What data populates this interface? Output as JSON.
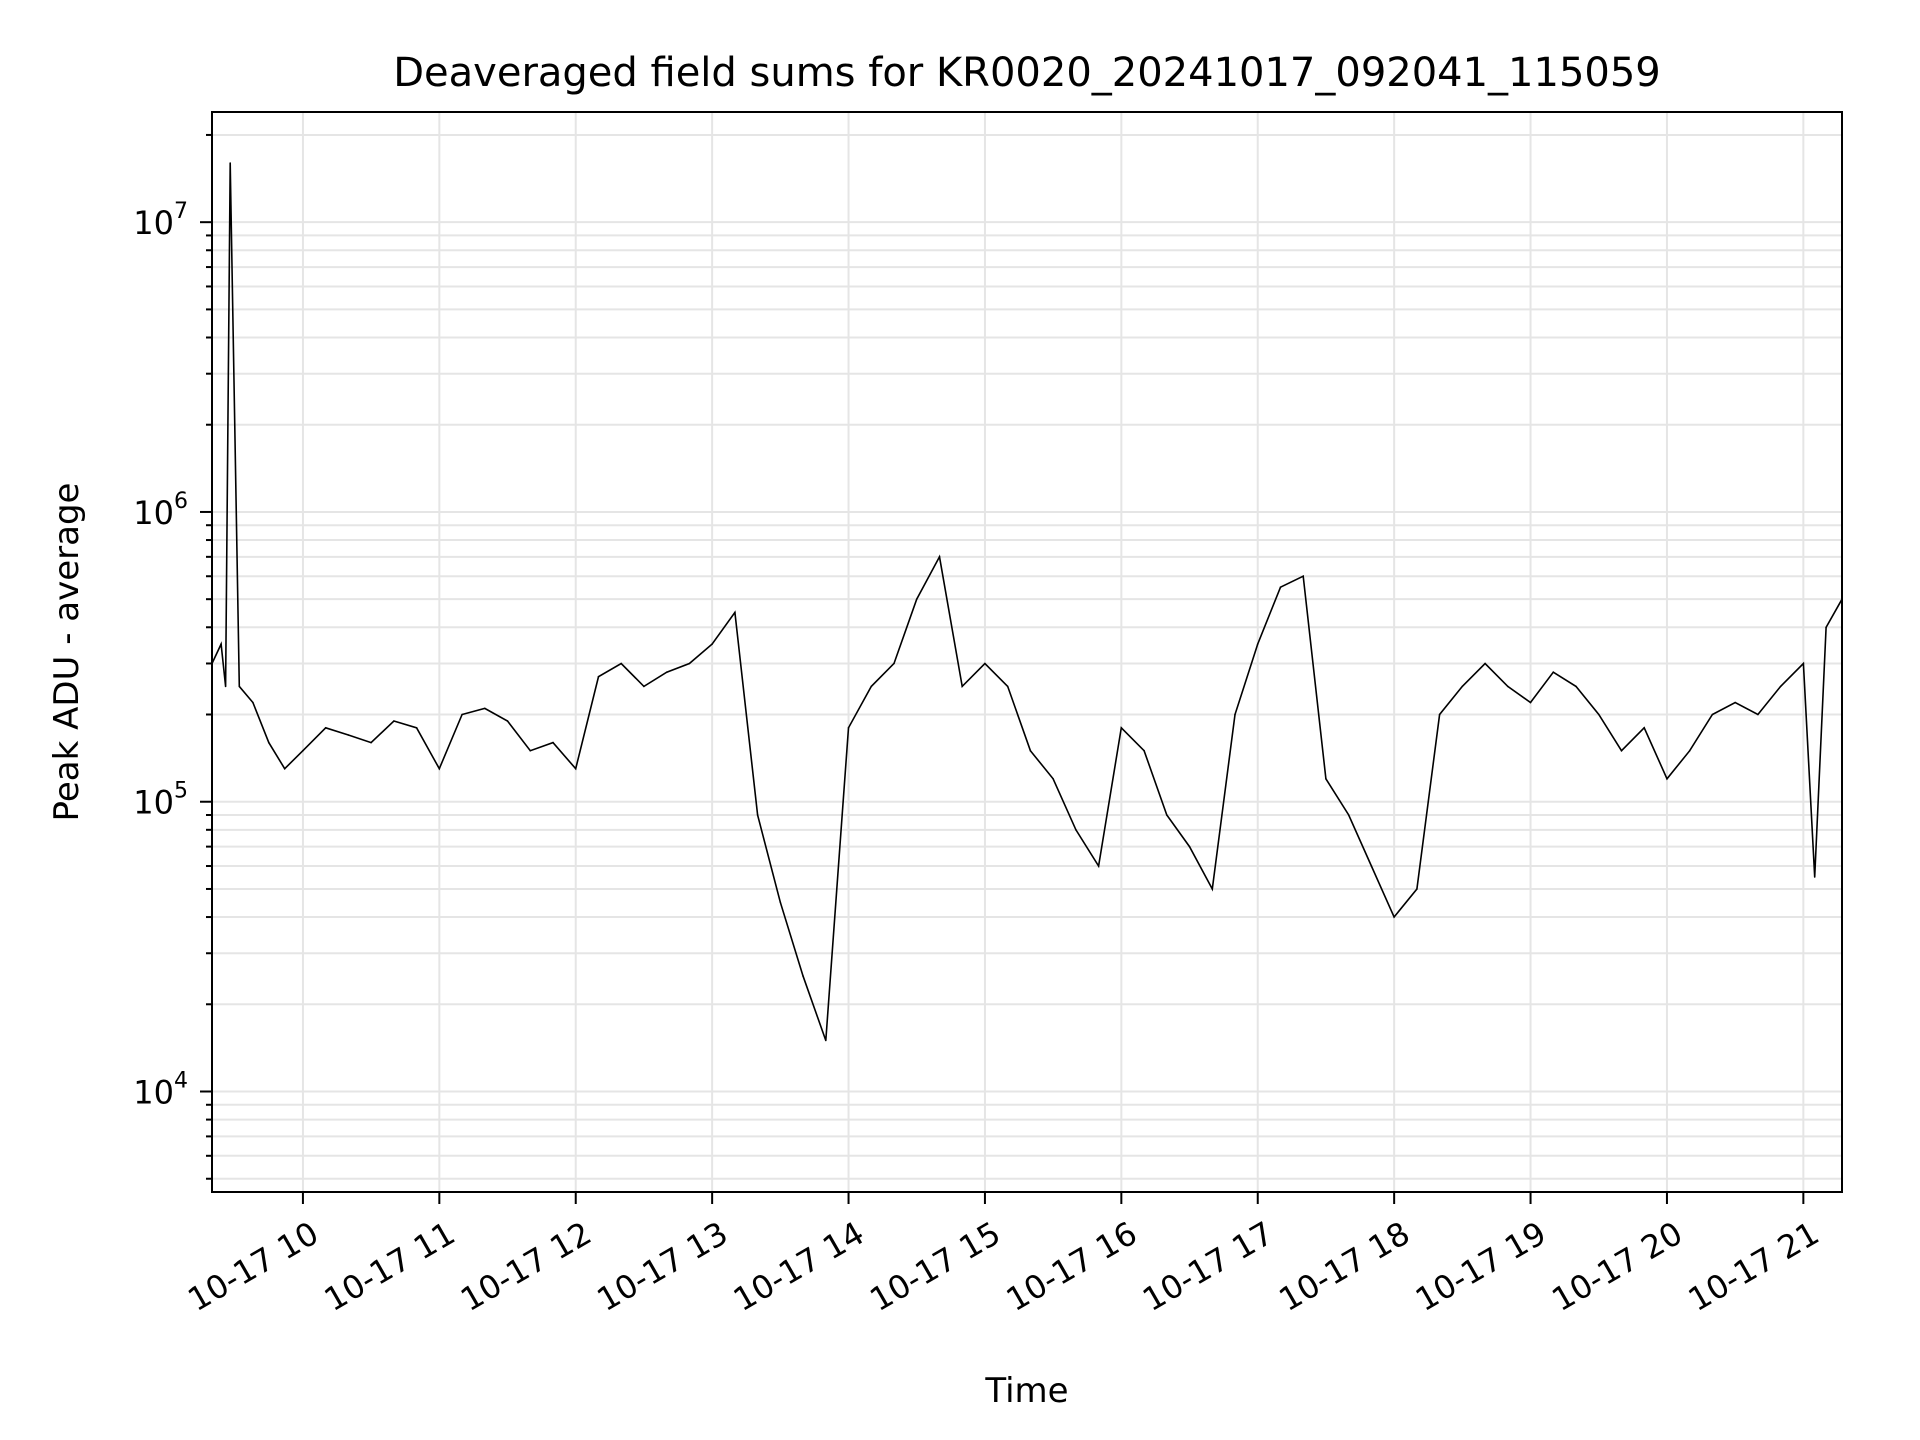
{
  "chart_data": {
    "type": "line",
    "title": "Deaveraged field sums for KR0020_20241017_092041_115059",
    "xlabel": "Time",
    "ylabel": "Peak ADU - average",
    "y_scale": "log",
    "ylim": [
      4500,
      24000000
    ],
    "xlim": [
      "2024-10-17 09:20",
      "2024-10-17 21:17"
    ],
    "x_ticks": [
      {
        "time": "2024-10-17 10:00",
        "label": "10-17 10"
      },
      {
        "time": "2024-10-17 11:00",
        "label": "10-17 11"
      },
      {
        "time": "2024-10-17 12:00",
        "label": "10-17 12"
      },
      {
        "time": "2024-10-17 13:00",
        "label": "10-17 13"
      },
      {
        "time": "2024-10-17 14:00",
        "label": "10-17 14"
      },
      {
        "time": "2024-10-17 15:00",
        "label": "10-17 15"
      },
      {
        "time": "2024-10-17 16:00",
        "label": "10-17 16"
      },
      {
        "time": "2024-10-17 17:00",
        "label": "10-17 17"
      },
      {
        "time": "2024-10-17 18:00",
        "label": "10-17 18"
      },
      {
        "time": "2024-10-17 19:00",
        "label": "10-17 19"
      },
      {
        "time": "2024-10-17 20:00",
        "label": "10-17 20"
      },
      {
        "time": "2024-10-17 21:00",
        "label": "10-17 21"
      }
    ],
    "y_ticks": [
      {
        "value": 10000,
        "base": "10",
        "exp": "4"
      },
      {
        "value": 100000,
        "base": "10",
        "exp": "5"
      },
      {
        "value": 1000000,
        "base": "10",
        "exp": "6"
      },
      {
        "value": 10000000,
        "base": "10",
        "exp": "7"
      }
    ],
    "grid": true,
    "grid_minor": true,
    "line_color": "#000000",
    "grid_color": "#e5e5e5",
    "series": [
      {
        "x": [
          "2024-10-17 09:20",
          "2024-10-17 09:24",
          "2024-10-17 09:26",
          "2024-10-17 09:28",
          "2024-10-17 09:32",
          "2024-10-17 09:38",
          "2024-10-17 09:45",
          "2024-10-17 09:52",
          "2024-10-17 10:00",
          "2024-10-17 10:10",
          "2024-10-17 10:20",
          "2024-10-17 10:30",
          "2024-10-17 10:40",
          "2024-10-17 10:50",
          "2024-10-17 11:00",
          "2024-10-17 11:10",
          "2024-10-17 11:20",
          "2024-10-17 11:30",
          "2024-10-17 11:40",
          "2024-10-17 11:50",
          "2024-10-17 12:00",
          "2024-10-17 12:10",
          "2024-10-17 12:20",
          "2024-10-17 12:30",
          "2024-10-17 12:40",
          "2024-10-17 12:50",
          "2024-10-17 13:00",
          "2024-10-17 13:10",
          "2024-10-17 13:20",
          "2024-10-17 13:30",
          "2024-10-17 13:40",
          "2024-10-17 13:50",
          "2024-10-17 14:00",
          "2024-10-17 14:10",
          "2024-10-17 14:20",
          "2024-10-17 14:30",
          "2024-10-17 14:40",
          "2024-10-17 14:50",
          "2024-10-17 15:00",
          "2024-10-17 15:10",
          "2024-10-17 15:20",
          "2024-10-17 15:30",
          "2024-10-17 15:40",
          "2024-10-17 15:50",
          "2024-10-17 16:00",
          "2024-10-17 16:10",
          "2024-10-17 16:20",
          "2024-10-17 16:30",
          "2024-10-17 16:40",
          "2024-10-17 16:50",
          "2024-10-17 17:00",
          "2024-10-17 17:10",
          "2024-10-17 17:20",
          "2024-10-17 17:30",
          "2024-10-17 17:40",
          "2024-10-17 17:50",
          "2024-10-17 18:00",
          "2024-10-17 18:10",
          "2024-10-17 18:20",
          "2024-10-17 18:30",
          "2024-10-17 18:40",
          "2024-10-17 18:50",
          "2024-10-17 19:00",
          "2024-10-17 19:10",
          "2024-10-17 19:20",
          "2024-10-17 19:30",
          "2024-10-17 19:40",
          "2024-10-17 19:50",
          "2024-10-17 20:00",
          "2024-10-17 20:10",
          "2024-10-17 20:20",
          "2024-10-17 20:30",
          "2024-10-17 20:40",
          "2024-10-17 20:50",
          "2024-10-17 21:00",
          "2024-10-17 21:05",
          "2024-10-17 21:10",
          "2024-10-17 21:17"
        ],
        "y": [
          300000,
          350000,
          250000,
          16000000,
          250000,
          220000,
          160000,
          130000,
          150000,
          180000,
          170000,
          160000,
          190000,
          180000,
          130000,
          200000,
          210000,
          190000,
          150000,
          160000,
          130000,
          270000,
          300000,
          250000,
          280000,
          300000,
          350000,
          450000,
          90000,
          45000,
          25000,
          15000,
          180000,
          250000,
          300000,
          500000,
          700000,
          250000,
          300000,
          250000,
          150000,
          120000,
          80000,
          60000,
          180000,
          150000,
          90000,
          70000,
          50000,
          200000,
          350000,
          550000,
          600000,
          120000,
          90000,
          60000,
          40000,
          50000,
          200000,
          250000,
          300000,
          250000,
          220000,
          280000,
          250000,
          200000,
          150000,
          180000,
          120000,
          150000,
          200000,
          220000,
          200000,
          250000,
          300000,
          55000,
          400000,
          500000
        ]
      }
    ]
  }
}
